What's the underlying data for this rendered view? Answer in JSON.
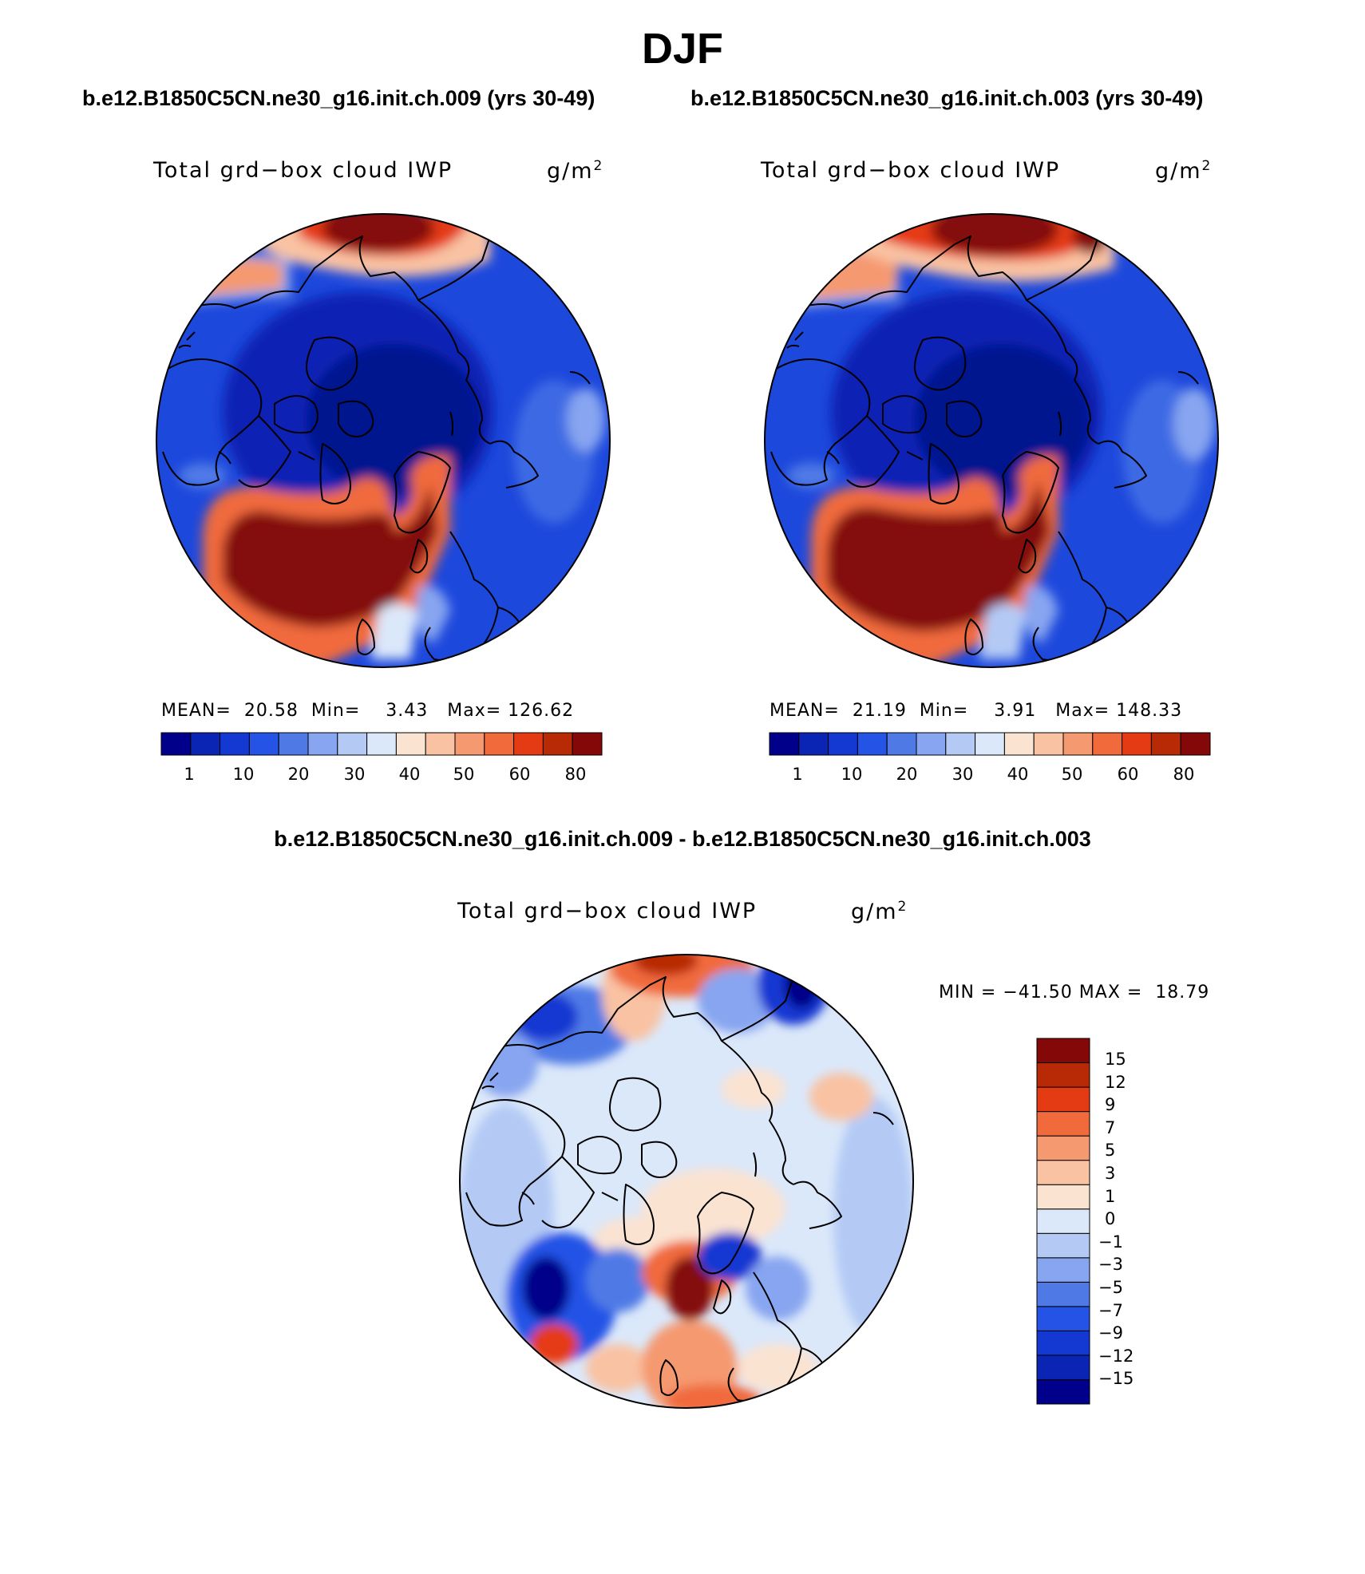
{
  "figure": {
    "season": "DJF",
    "case_a_title": "b.e12.B1850C5CN.ne30_g16.init.ch.009 (yrs 30-49)",
    "case_b_title": "b.e12.B1850C5CN.ne30_g16.init.ch.003 (yrs 30-49)",
    "diff_title": "b.e12.B1850C5CN.ne30_g16.init.ch.009 - b.e12.B1850C5CN.ne30_g16.init.ch.003"
  },
  "panels": [
    {
      "variable": "Total grd−box cloud IWP",
      "units": "g/m",
      "units_sup": "2",
      "mean_label": "MEAN=",
      "mean": "20.58",
      "min_label": "Min=",
      "min": "3.43",
      "max_label": "Max=",
      "max": "126.62"
    },
    {
      "variable": "Total grd−box cloud IWP",
      "units": "g/m",
      "units_sup": "2",
      "mean_label": "MEAN=",
      "mean": "21.19",
      "min_label": "Min=",
      "min": "3.91",
      "max_label": "Max=",
      "max": "148.33"
    }
  ],
  "diff_panel": {
    "variable": "Total grd−box cloud IWP",
    "units": "g/m",
    "units_sup": "2",
    "min_label": "MIN =",
    "min": "−41.50",
    "max_label": "MAX =",
    "max": "18.79"
  },
  "colorbar_abs": {
    "colors": [
      "#00008a",
      "#0a24b4",
      "#1438d2",
      "#2453e6",
      "#4f7ae6",
      "#87a5f0",
      "#b4caf5",
      "#dbe8fa",
      "#fbe3d2",
      "#f9c2a3",
      "#f59970",
      "#f06a3c",
      "#e53b14",
      "#b82a06",
      "#840808"
    ],
    "tick_labels": [
      "1",
      "10",
      "20",
      "30",
      "40",
      "50",
      "60",
      "80"
    ]
  },
  "colorbar_diff": {
    "colors": [
      "#00008a",
      "#0a24b4",
      "#1438d2",
      "#2453e6",
      "#4f7ae6",
      "#87a5f0",
      "#b4caf5",
      "#dbe8fa",
      "#fbe3d2",
      "#f9c2a3",
      "#f59970",
      "#f06a3c",
      "#e53b14",
      "#b82a06",
      "#840808"
    ],
    "tick_labels": [
      "15",
      "12",
      "9",
      "7",
      "5",
      "3",
      "1",
      "0",
      "−1",
      "−3",
      "−5",
      "−7",
      "−9",
      "−12",
      "−15"
    ]
  }
}
